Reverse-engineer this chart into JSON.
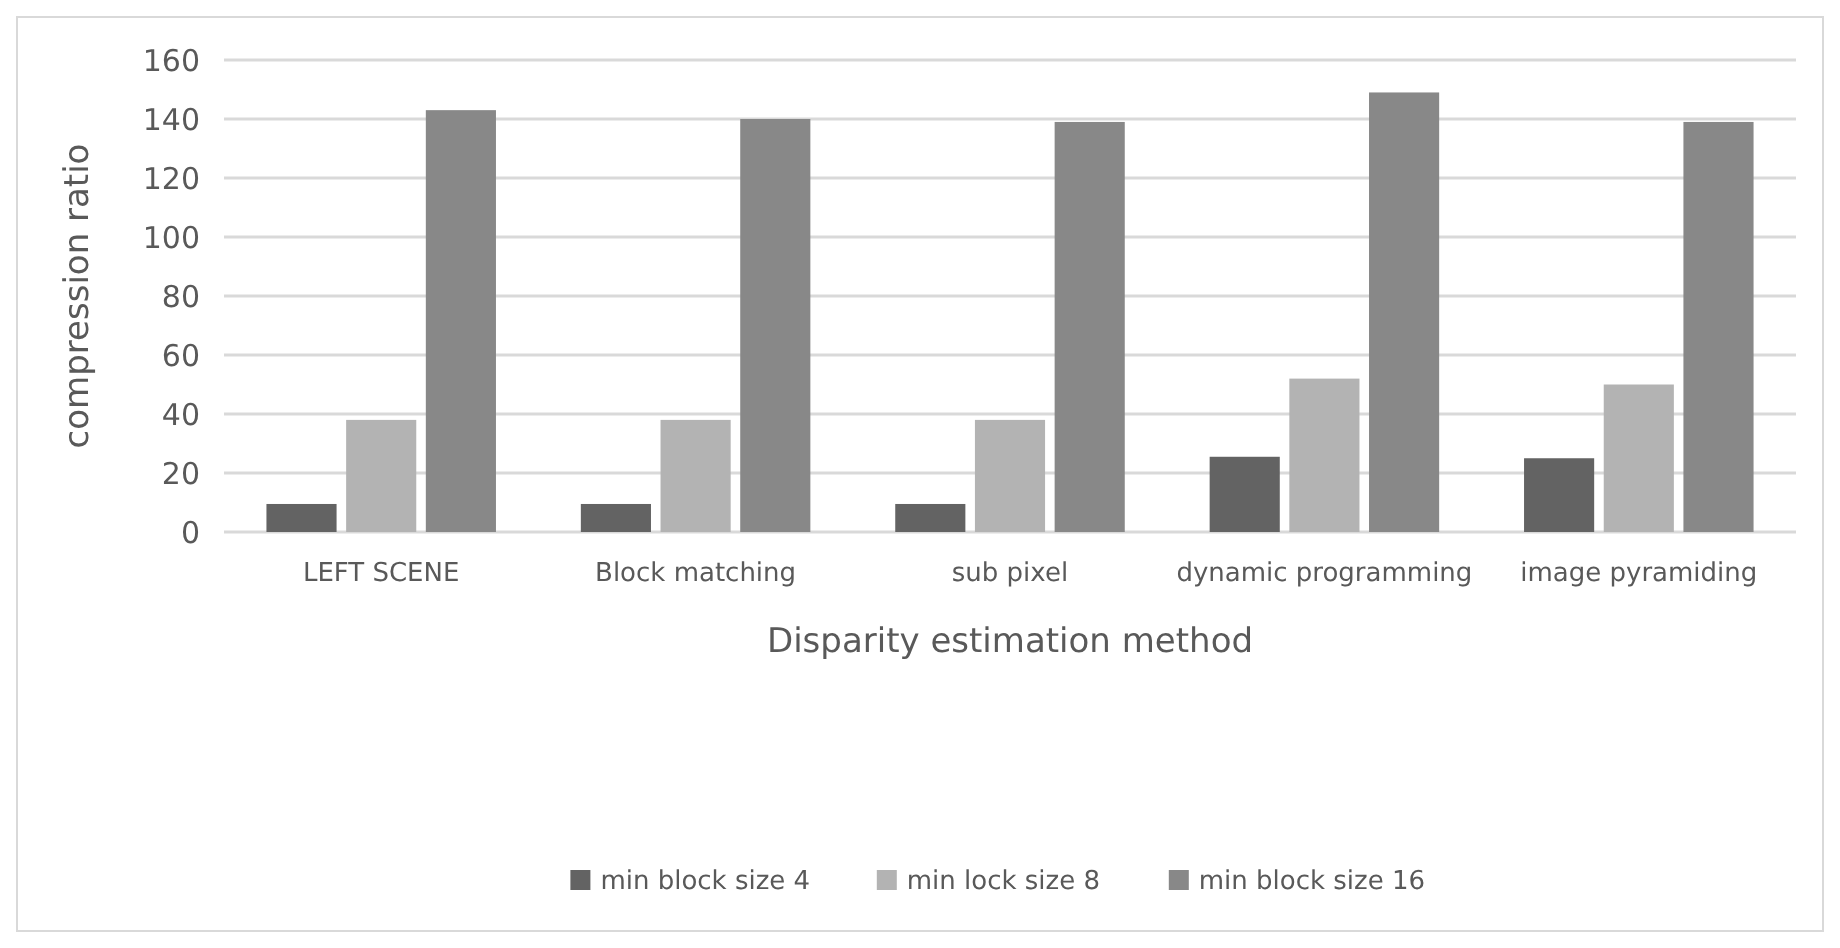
{
  "chart_data": {
    "type": "bar",
    "xlabel": "Disparity estimation method",
    "ylabel": "compression ratio",
    "categories": [
      "LEFT SCENE",
      "Block matching",
      "sub pixel",
      "dynamic programming",
      "image pyramiding"
    ],
    "series": [
      {
        "name": "min block size 4",
        "color": "#636363",
        "values": [
          9.5,
          9.5,
          9.5,
          25.5,
          25
        ]
      },
      {
        "name": "min lock size 8",
        "color": "#b3b3b3",
        "values": [
          38,
          38,
          38,
          52,
          50
        ]
      },
      {
        "name": "min block size 16",
        "color": "#888888",
        "values": [
          143,
          140,
          139,
          149,
          139
        ]
      }
    ],
    "ylim": [
      0,
      160
    ],
    "yticks": [
      0,
      20,
      40,
      60,
      80,
      100,
      120,
      140,
      160
    ],
    "grid": "y",
    "legend": "bottom"
  }
}
